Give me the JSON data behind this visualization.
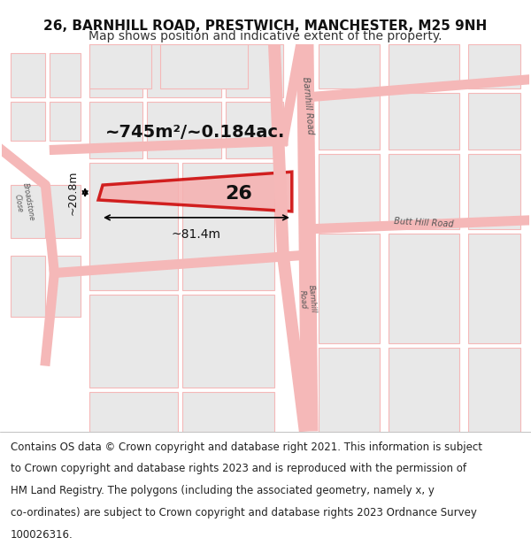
{
  "title": "26, BARNHILL ROAD, PRESTWICH, MANCHESTER, M25 9NH",
  "subtitle": "Map shows position and indicative extent of the property.",
  "map_bg": "#f0f0f0",
  "figure_bg": "#ffffff",
  "street_color": "#f5b8b8",
  "street_fill": "#e8e8e8",
  "highlight_color": "#cc0000",
  "highlight_fill": "#f5b8b8",
  "area_text": "~745m²/~0.184ac.",
  "width_text": "~81.4m",
  "height_text": "~20.8m",
  "number_text": "26",
  "footer": "Contains OS data © Crown copyright and database right 2021. This information is subject to Crown copyright and database rights 2023 and is reproduced with the permission of HM Land Registry. The polygons (including the associated geometry, namely x, y co-ordinates) are subject to Crown copyright and database rights 2023 Ordnance Survey 100026316.",
  "road_labels": [
    "Barnhill Road",
    "Butt Hill Road"
  ],
  "title_fontsize": 11,
  "subtitle_fontsize": 10,
  "footer_fontsize": 8.5
}
